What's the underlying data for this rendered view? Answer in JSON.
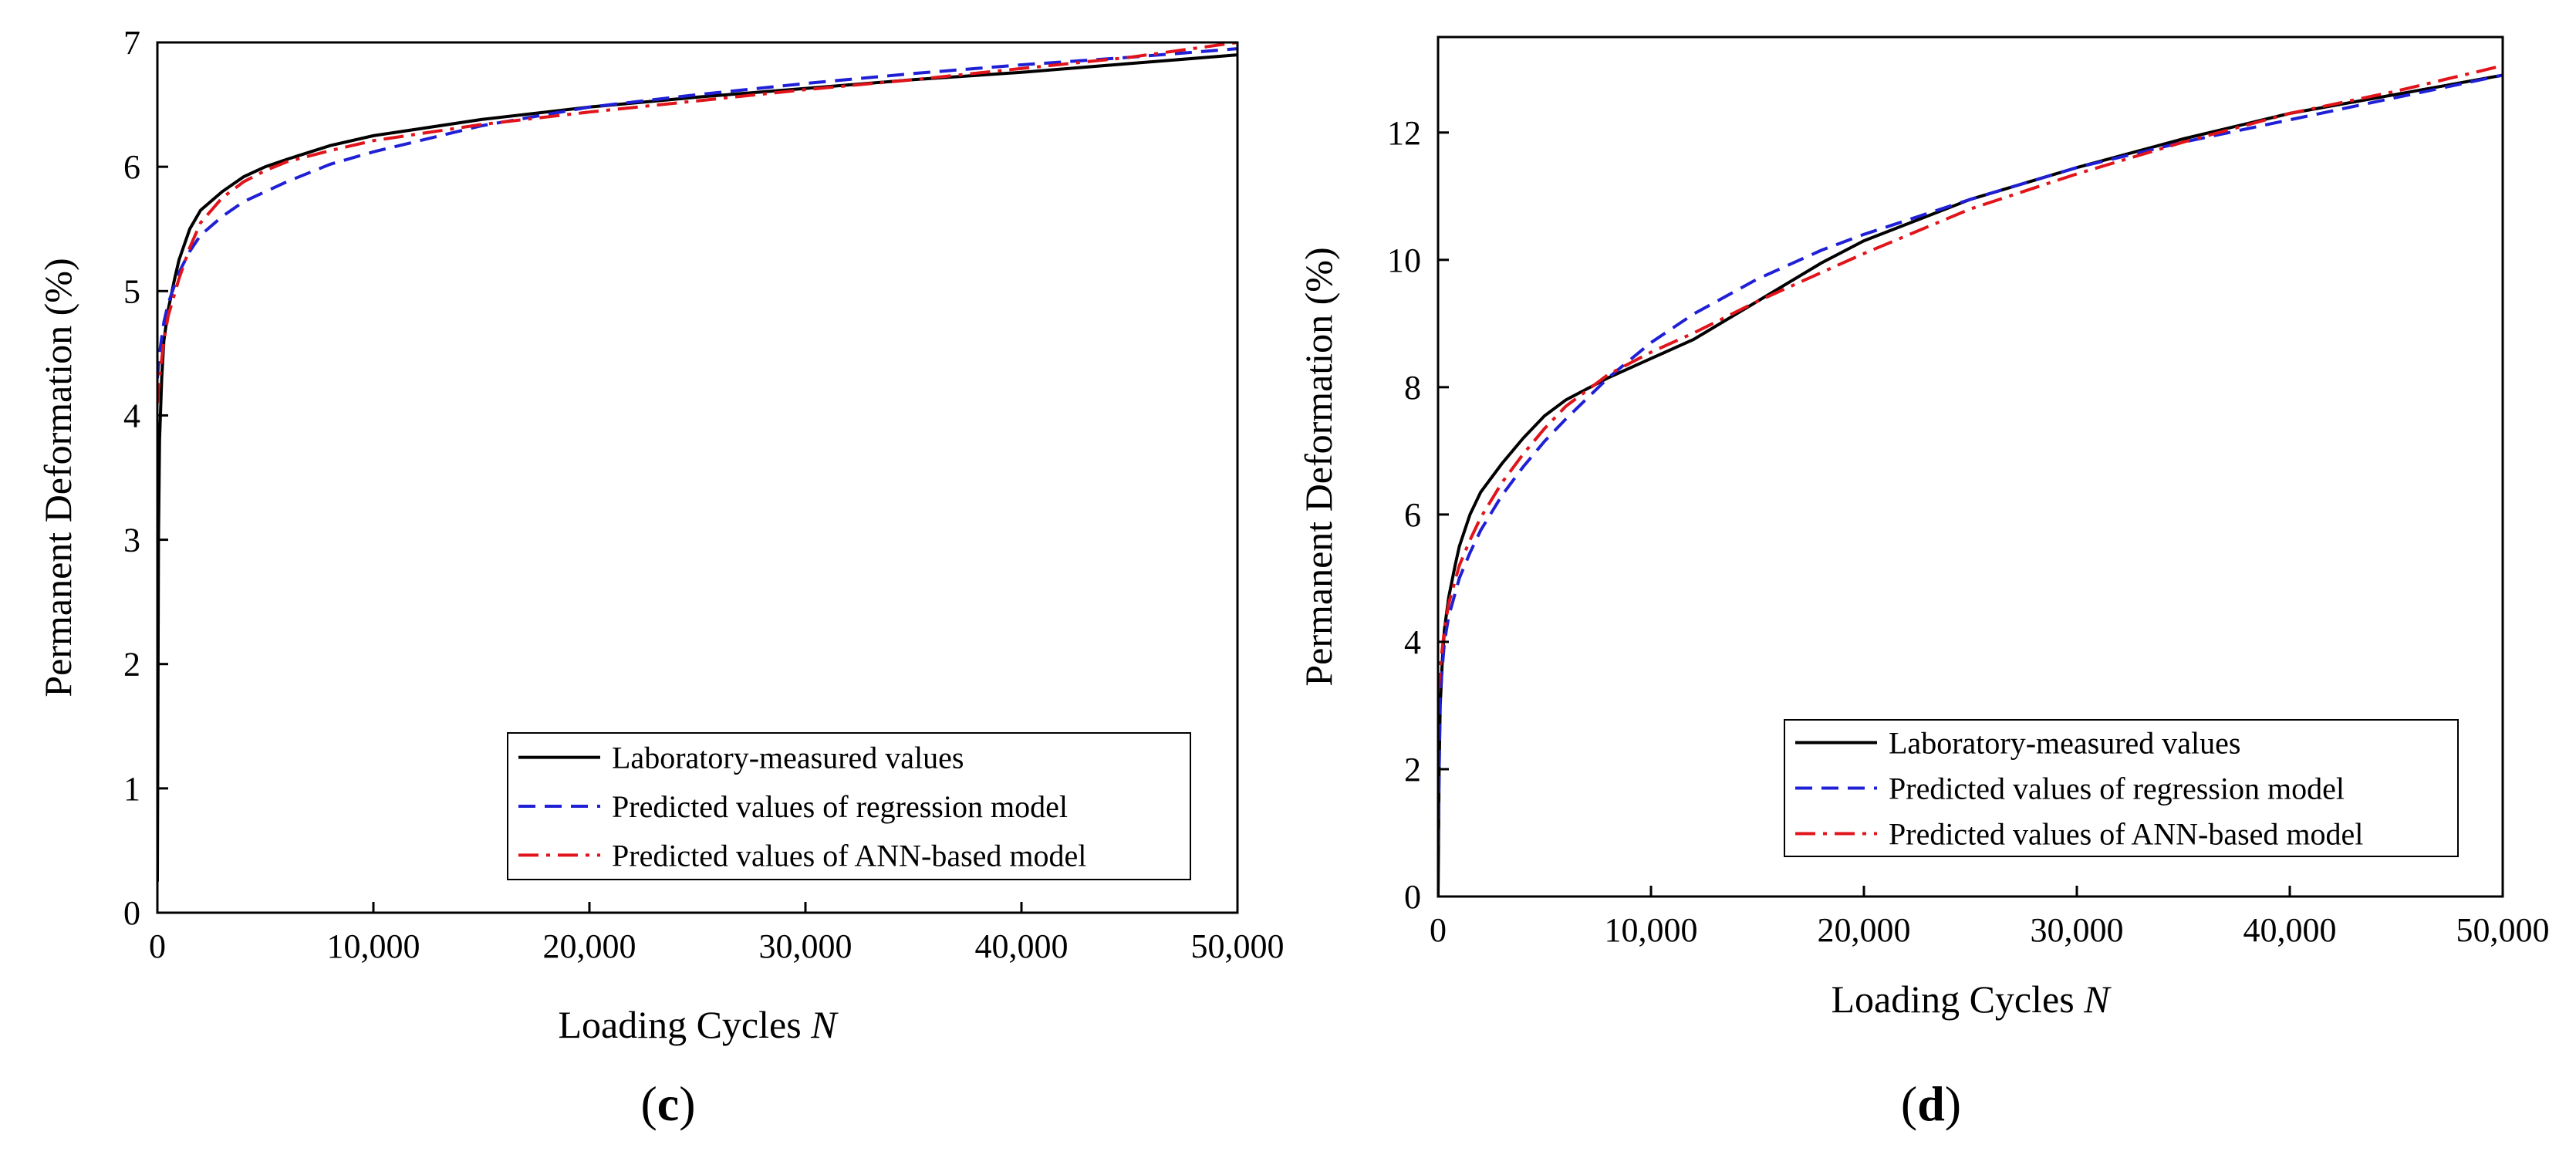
{
  "colors": {
    "measured": "#000000",
    "regression": "#1f1fd6",
    "ann": "#e0141a"
  },
  "chart_data": [
    {
      "type": "line",
      "panel_label": "c",
      "title": "",
      "xlabel": "Loading Cycles",
      "xlabel_italic": "N",
      "ylabel": "Permanent Deformation (%)",
      "xlim": [
        0,
        50000
      ],
      "ylim": [
        0,
        7
      ],
      "x_ticks": [
        0,
        10000,
        20000,
        30000,
        40000,
        50000
      ],
      "x_tick_labels": [
        "0",
        "10,000",
        "20,000",
        "30,000",
        "40,000",
        "50,000"
      ],
      "y_ticks": [
        0,
        1,
        2,
        3,
        4,
        5,
        6,
        7
      ],
      "y_tick_labels": [
        "0",
        "1",
        "2",
        "3",
        "4",
        "5",
        "6",
        "7"
      ],
      "grid": false,
      "legend_position": "lower-right",
      "series": [
        {
          "name": "Laboratory-measured values",
          "style": "solid",
          "x": [
            0,
            50,
            100,
            200,
            300,
            500,
            800,
            1000,
            1500,
            2000,
            3000,
            4000,
            5000,
            6000,
            8000,
            10000,
            15000,
            20000,
            25000,
            30000,
            35000,
            40000,
            45000,
            50000
          ],
          "y": [
            0.25,
            3.0,
            3.8,
            4.3,
            4.6,
            4.85,
            5.1,
            5.25,
            5.5,
            5.65,
            5.8,
            5.92,
            6.0,
            6.06,
            6.17,
            6.25,
            6.38,
            6.48,
            6.56,
            6.63,
            6.7,
            6.76,
            6.83,
            6.9
          ]
        },
        {
          "name": "Predicted values of regression model",
          "style": "dashed",
          "x": [
            0,
            100,
            300,
            500,
            1000,
            1500,
            2000,
            3000,
            4000,
            5000,
            6000,
            8000,
            10000,
            15000,
            20000,
            25000,
            30000,
            35000,
            40000,
            45000,
            50000
          ],
          "y": [
            4.3,
            4.5,
            4.75,
            4.9,
            5.15,
            5.32,
            5.45,
            5.6,
            5.72,
            5.8,
            5.88,
            6.02,
            6.12,
            6.33,
            6.48,
            6.58,
            6.67,
            6.75,
            6.82,
            6.88,
            6.95
          ]
        },
        {
          "name": "Predicted values of ANN-based model",
          "style": "dashdot",
          "x": [
            0,
            100,
            300,
            500,
            1000,
            1500,
            2000,
            3000,
            4000,
            5000,
            6000,
            8000,
            10000,
            15000,
            20000,
            25000,
            30000,
            35000,
            40000,
            45000,
            50000
          ],
          "y": [
            4.1,
            4.3,
            4.6,
            4.8,
            5.1,
            5.35,
            5.55,
            5.75,
            5.88,
            5.97,
            6.04,
            6.13,
            6.21,
            6.34,
            6.44,
            6.53,
            6.62,
            6.7,
            6.79,
            6.88,
            7.0
          ]
        }
      ]
    },
    {
      "type": "line",
      "panel_label": "d",
      "title": "",
      "xlabel": "Loading Cycles",
      "xlabel_italic": "N",
      "ylabel": "Permanent Deformation (%)",
      "xlim": [
        0,
        50000
      ],
      "ylim": [
        0,
        13.5
      ],
      "x_ticks": [
        0,
        10000,
        20000,
        30000,
        40000,
        50000
      ],
      "x_tick_labels": [
        "0",
        "10,000",
        "20,000",
        "30,000",
        "40,000",
        "50,000"
      ],
      "y_ticks": [
        0,
        2,
        4,
        6,
        8,
        10,
        12
      ],
      "y_tick_labels": [
        "0",
        "2",
        "4",
        "6",
        "8",
        "10",
        "12"
      ],
      "grid": false,
      "legend_position": "lower-right",
      "series": [
        {
          "name": "Laboratory-measured values",
          "style": "solid",
          "x": [
            0,
            50,
            100,
            200,
            300,
            500,
            800,
            1000,
            1500,
            2000,
            3000,
            4000,
            5000,
            6000,
            8000,
            10000,
            12000,
            15000,
            18000,
            20000,
            25000,
            30000,
            35000,
            40000,
            45000,
            50000
          ],
          "y": [
            0.0,
            2.0,
            3.0,
            3.7,
            4.2,
            4.7,
            5.2,
            5.5,
            6.0,
            6.35,
            6.8,
            7.2,
            7.55,
            7.8,
            8.15,
            8.45,
            8.75,
            9.35,
            9.95,
            10.3,
            10.95,
            11.45,
            11.9,
            12.3,
            12.6,
            12.9
          ]
        },
        {
          "name": "Predicted values of regression model",
          "style": "dashed",
          "x": [
            0,
            100,
            300,
            500,
            1000,
            1500,
            2000,
            3000,
            4000,
            5000,
            6000,
            8000,
            10000,
            12000,
            15000,
            18000,
            20000,
            25000,
            30000,
            35000,
            40000,
            45000,
            50000
          ],
          "y": [
            0.8,
            3.2,
            4.0,
            4.4,
            5.0,
            5.4,
            5.75,
            6.3,
            6.75,
            7.15,
            7.5,
            8.15,
            8.7,
            9.15,
            9.7,
            10.15,
            10.4,
            10.95,
            11.45,
            11.85,
            12.2,
            12.55,
            12.9
          ]
        },
        {
          "name": "Predicted values of ANN-based model",
          "style": "dashdot",
          "x": [
            0,
            100,
            300,
            500,
            1000,
            1500,
            2000,
            3000,
            4000,
            5000,
            6000,
            8000,
            10000,
            12000,
            15000,
            18000,
            20000,
            25000,
            30000,
            35000,
            40000,
            45000,
            50000
          ],
          "y": [
            3.2,
            3.6,
            4.2,
            4.6,
            5.2,
            5.6,
            5.95,
            6.5,
            6.95,
            7.35,
            7.7,
            8.2,
            8.55,
            8.85,
            9.35,
            9.8,
            10.1,
            10.8,
            11.35,
            11.85,
            12.3,
            12.65,
            13.05
          ]
        }
      ]
    }
  ]
}
